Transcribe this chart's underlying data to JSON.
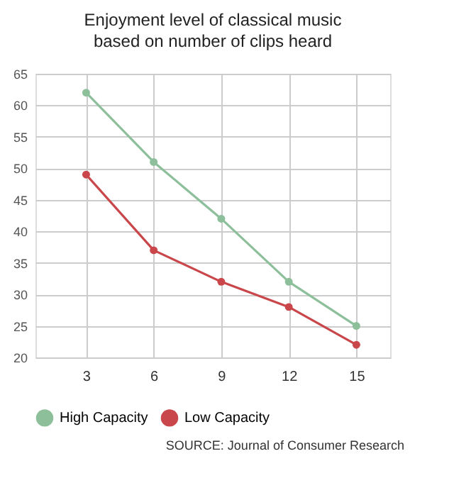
{
  "chart_data": {
    "type": "line",
    "title": "Enjoyment level of classical music based on number of clips heard",
    "categories": [
      "3",
      "6",
      "9",
      "12",
      "15"
    ],
    "series": [
      {
        "name": "High Capacity",
        "color": "#8dbf9b",
        "values": [
          62,
          51,
          42,
          32,
          25
        ]
      },
      {
        "name": "Low Capacity",
        "color": "#c9474a",
        "values": [
          49,
          37,
          32,
          28,
          22
        ]
      }
    ],
    "ylim": [
      20,
      65
    ],
    "yticks": [
      20,
      25,
      30,
      35,
      40,
      45,
      50,
      55,
      60,
      65
    ],
    "grid": true,
    "legend": "bottom",
    "marker": "circle",
    "line_style": "solid",
    "annotations": [
      "SOURCE: Journal of Consumer Research"
    ]
  }
}
